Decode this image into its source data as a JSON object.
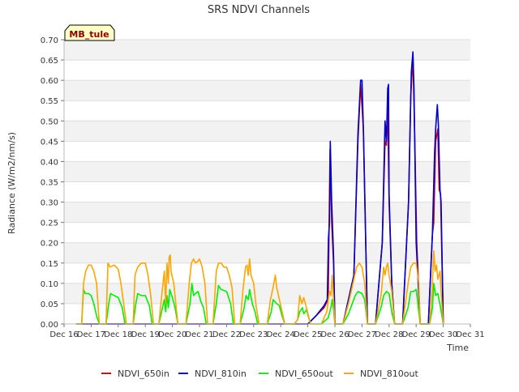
{
  "chart_data": {
    "type": "line",
    "title": "SRS NDVI Channels",
    "xlabel": "Time",
    "ylabel": "Radiance (W/m2/nm/s)",
    "ylim": [
      0,
      0.7
    ],
    "xlim": [
      0,
      15
    ],
    "grid": "horizontal bands",
    "legend_position": "bottom",
    "site_label": "MB_tule",
    "x_ticks": [
      {
        "x": 0,
        "label": "Dec 16"
      },
      {
        "x": 1,
        "label": "Dec 17"
      },
      {
        "x": 2,
        "label": "Dec 18"
      },
      {
        "x": 3,
        "label": "Dec 19"
      },
      {
        "x": 4,
        "label": "Dec 20"
      },
      {
        "x": 5,
        "label": "Dec 21"
      },
      {
        "x": 6,
        "label": "Dec 22"
      },
      {
        "x": 7,
        "label": "Dec 23"
      },
      {
        "x": 8,
        "label": "Dec 24"
      },
      {
        "x": 9,
        "label": "Dec 25"
      },
      {
        "x": 10,
        "label": "Dec 26"
      },
      {
        "x": 11,
        "label": "Dec 27"
      },
      {
        "x": 12,
        "label": "Dec 28"
      },
      {
        "x": 13,
        "label": "Dec 29"
      },
      {
        "x": 14,
        "label": "Dec 30"
      },
      {
        "x": 15,
        "label": "Dec 31"
      }
    ],
    "y_ticks": [
      {
        "y": 0.0,
        "label": "0.00"
      },
      {
        "y": 0.05,
        "label": "0.05"
      },
      {
        "y": 0.1,
        "label": "0.10"
      },
      {
        "y": 0.15,
        "label": "0.15"
      },
      {
        "y": 0.2,
        "label": "0.20"
      },
      {
        "y": 0.25,
        "label": "0.25"
      },
      {
        "y": 0.3,
        "label": "0.30"
      },
      {
        "y": 0.35,
        "label": "0.35"
      },
      {
        "y": 0.4,
        "label": "0.40"
      },
      {
        "y": 0.45,
        "label": "0.45"
      },
      {
        "y": 0.5,
        "label": "0.50"
      },
      {
        "y": 0.55,
        "label": "0.55"
      },
      {
        "y": 0.6,
        "label": "0.60"
      },
      {
        "y": 0.65,
        "label": "0.65"
      },
      {
        "y": 0.7,
        "label": "0.70"
      }
    ],
    "series": [
      {
        "name": "NDVI_650in",
        "color": "#cc0000",
        "x": [
          0.45,
          9.0,
          9.3,
          9.6,
          9.75,
          9.82,
          9.88,
          9.95,
          10.0,
          10.3,
          10.7,
          10.85,
          10.95,
          11.05,
          11.2,
          11.5,
          11.75,
          11.85,
          11.9,
          11.95,
          12.0,
          12.1,
          12.2,
          12.5,
          12.72,
          12.8,
          12.88,
          12.95,
          13.02,
          13.15,
          13.45,
          13.6,
          13.65,
          13.72,
          13.8,
          13.85,
          13.9,
          14.0
        ],
        "y": [
          0.0,
          0.0,
          0.02,
          0.04,
          0.06,
          0.43,
          0.25,
          0.15,
          0.0,
          0.0,
          0.12,
          0.45,
          0.59,
          0.48,
          0.0,
          0.0,
          0.2,
          0.45,
          0.44,
          0.54,
          0.3,
          0.1,
          0.0,
          0.0,
          0.3,
          0.56,
          0.66,
          0.45,
          0.2,
          0.0,
          0.0,
          0.22,
          0.25,
          0.45,
          0.48,
          0.33,
          0.32,
          0.0
        ]
      },
      {
        "name": "NDVI_810in",
        "color": "#0000cc",
        "x": [
          0.45,
          9.0,
          9.3,
          9.6,
          9.72,
          9.76,
          9.8,
          9.83,
          9.88,
          9.95,
          10.0,
          10.3,
          10.7,
          10.85,
          10.95,
          11.0,
          11.05,
          11.2,
          11.5,
          11.75,
          11.85,
          11.9,
          11.95,
          11.98,
          12.0,
          12.1,
          12.2,
          12.5,
          12.72,
          12.82,
          12.88,
          12.92,
          13.0,
          13.15,
          13.45,
          13.6,
          13.68,
          13.72,
          13.78,
          13.82,
          13.88,
          13.92,
          14.0
        ],
        "y": [
          0.0,
          0.0,
          0.02,
          0.045,
          0.06,
          0.21,
          0.25,
          0.45,
          0.3,
          0.17,
          0.0,
          0.0,
          0.12,
          0.47,
          0.6,
          0.6,
          0.48,
          0.0,
          0.0,
          0.2,
          0.5,
          0.45,
          0.58,
          0.59,
          0.32,
          0.1,
          0.0,
          0.0,
          0.3,
          0.62,
          0.67,
          0.58,
          0.2,
          0.0,
          0.0,
          0.22,
          0.42,
          0.48,
          0.54,
          0.49,
          0.33,
          0.3,
          0.0
        ]
      },
      {
        "name": "NDVI_650out",
        "color": "#00ee00",
        "x": [
          0.45,
          0.65,
          0.72,
          0.78,
          0.9,
          1.0,
          1.1,
          1.2,
          1.3,
          1.55,
          1.65,
          1.72,
          1.85,
          2.0,
          2.15,
          2.25,
          2.55,
          2.65,
          2.72,
          2.85,
          3.0,
          3.15,
          3.25,
          3.5,
          3.65,
          3.7,
          3.75,
          3.8,
          3.85,
          3.9,
          4.0,
          4.1,
          4.2,
          4.5,
          4.65,
          4.72,
          4.78,
          4.85,
          4.95,
          5.05,
          5.15,
          5.25,
          5.5,
          5.62,
          5.7,
          5.8,
          6.0,
          6.15,
          6.25,
          6.5,
          6.65,
          6.72,
          6.8,
          6.85,
          6.95,
          7.05,
          7.15,
          7.5,
          7.65,
          7.72,
          7.85,
          7.95,
          8.05,
          8.15,
          8.5,
          8.62,
          8.7,
          8.8,
          8.85,
          8.95,
          9.1,
          9.5,
          9.75,
          9.85,
          9.9,
          9.95,
          10.0,
          10.3,
          10.5,
          10.75,
          10.85,
          11.0,
          11.1,
          11.2,
          11.5,
          11.7,
          11.8,
          11.9,
          12.0,
          12.1,
          12.2,
          12.5,
          12.7,
          12.8,
          12.9,
          13.0,
          13.1,
          13.15,
          13.5,
          13.6,
          13.65,
          13.72,
          13.8,
          13.9,
          14.0
        ],
        "y": [
          0.0,
          0.0,
          0.085,
          0.075,
          0.075,
          0.07,
          0.05,
          0.02,
          0.0,
          0.0,
          0.05,
          0.075,
          0.07,
          0.065,
          0.04,
          0.0,
          0.0,
          0.05,
          0.075,
          0.07,
          0.07,
          0.045,
          0.0,
          0.0,
          0.045,
          0.06,
          0.03,
          0.07,
          0.04,
          0.085,
          0.065,
          0.04,
          0.0,
          0.0,
          0.05,
          0.1,
          0.07,
          0.075,
          0.08,
          0.055,
          0.04,
          0.0,
          0.0,
          0.05,
          0.095,
          0.085,
          0.08,
          0.05,
          0.0,
          0.0,
          0.04,
          0.07,
          0.06,
          0.085,
          0.05,
          0.03,
          0.0,
          0.0,
          0.03,
          0.06,
          0.05,
          0.045,
          0.02,
          0.0,
          0.0,
          0.01,
          0.03,
          0.04,
          0.025,
          0.035,
          0.0,
          0.0,
          0.015,
          0.04,
          0.06,
          0.035,
          0.0,
          0.0,
          0.025,
          0.07,
          0.08,
          0.075,
          0.06,
          0.0,
          0.0,
          0.04,
          0.07,
          0.08,
          0.075,
          0.03,
          0.0,
          0.0,
          0.04,
          0.08,
          0.08,
          0.085,
          0.03,
          0.0,
          0.0,
          0.04,
          0.1,
          0.07,
          0.075,
          0.04,
          0.0
        ]
      },
      {
        "name": "NDVI_810out",
        "color": "#ffa500",
        "x": [
          0.45,
          0.65,
          0.72,
          0.8,
          0.9,
          1.0,
          1.1,
          1.2,
          1.3,
          1.55,
          1.62,
          1.7,
          1.85,
          2.0,
          2.1,
          2.2,
          2.3,
          2.55,
          2.62,
          2.72,
          2.85,
          3.0,
          3.1,
          3.2,
          3.3,
          3.5,
          3.62,
          3.7,
          3.75,
          3.8,
          3.85,
          3.88,
          3.92,
          3.95,
          4.05,
          4.2,
          4.5,
          4.62,
          4.7,
          4.78,
          4.85,
          4.95,
          5.0,
          5.1,
          5.2,
          5.3,
          5.5,
          5.62,
          5.7,
          5.8,
          5.9,
          6.0,
          6.1,
          6.2,
          6.3,
          6.5,
          6.6,
          6.7,
          6.75,
          6.8,
          6.85,
          6.9,
          7.0,
          7.1,
          7.2,
          7.5,
          7.62,
          7.72,
          7.8,
          7.85,
          7.95,
          8.05,
          8.15,
          8.5,
          8.62,
          8.7,
          8.78,
          8.85,
          8.95,
          9.1,
          9.5,
          9.7,
          9.8,
          9.85,
          9.9,
          9.95,
          10.0,
          10.3,
          10.5,
          10.7,
          10.8,
          10.9,
          11.0,
          11.1,
          11.2,
          11.5,
          11.7,
          11.8,
          11.85,
          11.9,
          11.95,
          12.0,
          12.1,
          12.2,
          12.5,
          12.7,
          12.8,
          12.9,
          13.0,
          13.1,
          13.15,
          13.5,
          13.6,
          13.65,
          13.7,
          13.75,
          13.8,
          13.88,
          13.92,
          14.0
        ],
        "y": [
          0.0,
          0.0,
          0.1,
          0.13,
          0.145,
          0.145,
          0.13,
          0.1,
          0.0,
          0.0,
          0.15,
          0.14,
          0.145,
          0.135,
          0.1,
          0.05,
          0.0,
          0.0,
          0.12,
          0.14,
          0.15,
          0.15,
          0.12,
          0.07,
          0.0,
          0.0,
          0.08,
          0.13,
          0.05,
          0.15,
          0.1,
          0.165,
          0.17,
          0.13,
          0.1,
          0.0,
          0.0,
          0.1,
          0.15,
          0.16,
          0.15,
          0.155,
          0.16,
          0.14,
          0.1,
          0.0,
          0.0,
          0.13,
          0.15,
          0.15,
          0.14,
          0.14,
          0.12,
          0.09,
          0.0,
          0.0,
          0.08,
          0.14,
          0.145,
          0.12,
          0.16,
          0.12,
          0.1,
          0.04,
          0.0,
          0.0,
          0.06,
          0.09,
          0.12,
          0.09,
          0.06,
          0.03,
          0.0,
          0.0,
          0.01,
          0.07,
          0.05,
          0.065,
          0.04,
          0.0,
          0.0,
          0.03,
          0.08,
          0.07,
          0.12,
          0.06,
          0.0,
          0.0,
          0.05,
          0.11,
          0.14,
          0.15,
          0.14,
          0.1,
          0.0,
          0.0,
          0.07,
          0.14,
          0.12,
          0.14,
          0.15,
          0.12,
          0.08,
          0.0,
          0.0,
          0.1,
          0.14,
          0.15,
          0.15,
          0.1,
          0.0,
          0.0,
          0.1,
          0.18,
          0.13,
          0.145,
          0.11,
          0.13,
          0.08,
          0.0
        ]
      }
    ]
  }
}
